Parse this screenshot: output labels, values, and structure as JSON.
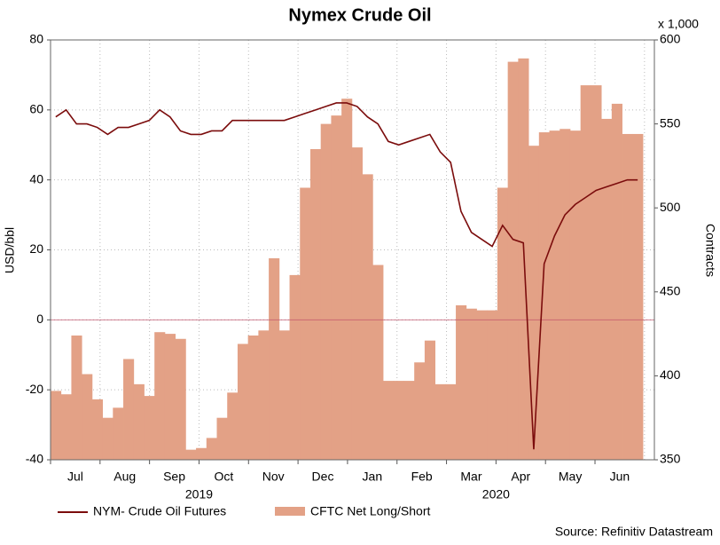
{
  "chart_data": {
    "type": "bar_line",
    "title": "Nymex Crude Oil",
    "y_label": "USD/bbl",
    "y2_label": "Contracts",
    "y2_unit": "x 1,000",
    "source": "Source: Refinitiv Datastream",
    "months": [
      "Jul",
      "Aug",
      "Sep",
      "Oct",
      "Nov",
      "Dec",
      "Jan",
      "Feb",
      "Mar",
      "Apr",
      "May",
      "Jun"
    ],
    "years": [
      "2019",
      "2020"
    ],
    "ylim": [
      -40,
      80
    ],
    "yticks": [
      -40,
      -20,
      0,
      20,
      40,
      60,
      80
    ],
    "y2lim": [
      350,
      600
    ],
    "y2ticks": [
      350,
      400,
      450,
      500,
      550,
      600
    ],
    "grid": true,
    "legend": "bottom",
    "series": [
      {
        "name": "NYM- Crude Oil Futures",
        "color": "#7b0c0c",
        "axis": "y",
        "values": [
          58,
          60,
          56,
          56,
          55,
          53,
          55,
          55,
          56,
          57,
          60,
          58,
          54,
          53,
          53,
          54,
          54,
          57,
          57,
          57,
          57,
          57,
          57,
          58,
          59,
          60,
          61,
          62,
          62,
          61,
          58,
          56,
          51,
          50,
          51,
          52,
          53,
          48,
          45,
          31,
          25,
          23,
          21,
          27,
          23,
          22,
          -37,
          16,
          24,
          30,
          33,
          35,
          37,
          38,
          39,
          40,
          40
        ]
      },
      {
        "name": "CFTC Net Long/Short",
        "color": "#e3a186",
        "axis": "y2",
        "values": [
          391,
          389,
          424,
          401,
          386,
          375,
          381,
          410,
          395,
          388,
          426,
          425,
          422,
          356,
          357,
          363,
          375,
          390,
          419,
          424,
          427,
          470,
          427,
          460,
          512,
          535,
          550,
          555,
          565,
          536,
          520,
          466,
          397,
          397,
          397,
          408,
          421,
          395,
          395,
          442,
          440,
          439,
          439,
          512,
          587,
          589,
          537,
          545,
          546,
          547,
          546,
          573,
          573,
          553,
          562,
          544,
          544
        ]
      }
    ]
  }
}
